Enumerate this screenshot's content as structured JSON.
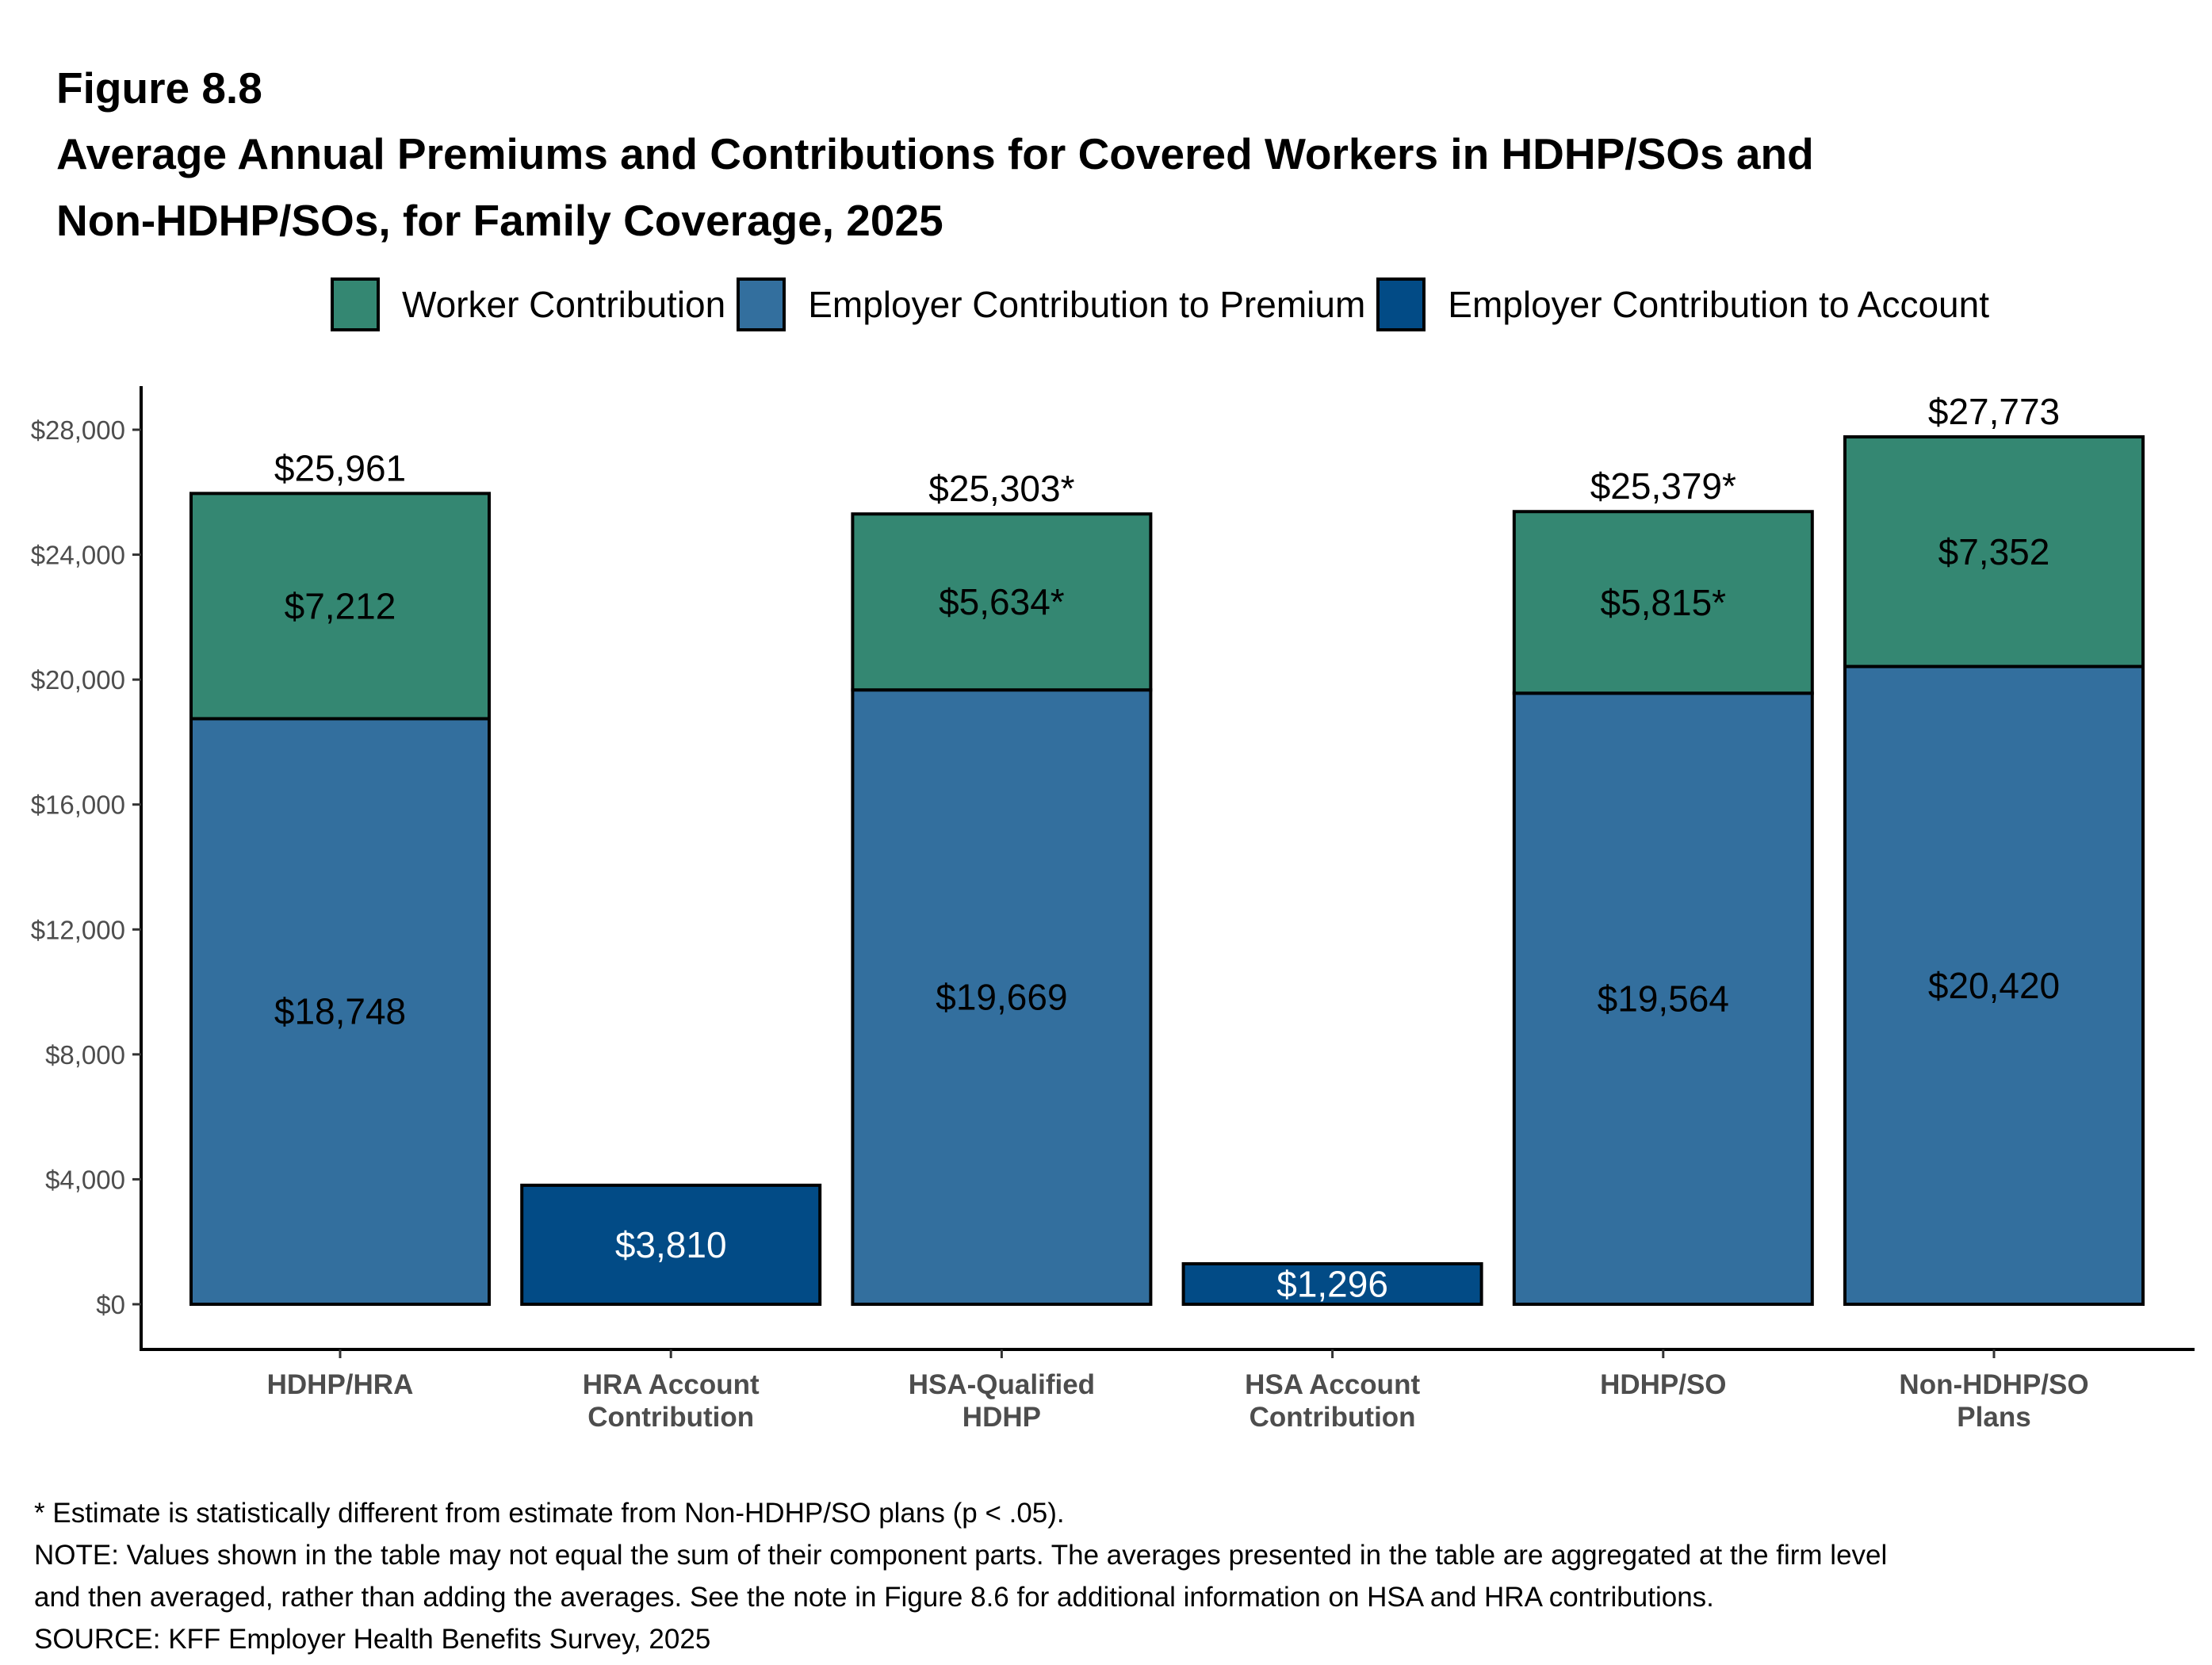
{
  "figure_number": "Figure 8.8",
  "title_line1": "Average Annual Premiums and Contributions for Covered Workers in HDHP/SOs and",
  "title_line2": "Non-HDHP/SOs, for Family Coverage, 2025",
  "legend": [
    {
      "label": "Worker Contribution",
      "color": "#348772"
    },
    {
      "label": "Employer Contribution to Premium",
      "color": "#336F9E"
    },
    {
      "label": "Employer Contribution to Account",
      "color": "#024B86"
    }
  ],
  "footnotes": {
    "asterisk": "* Estimate is statistically different from estimate from Non-HDHP/SO plans (p < .05).",
    "note_line1": "NOTE: Values shown in the table may not equal the sum of their component parts. The averages presented in the table are aggregated at the firm level",
    "note_line2": "and then averaged, rather than adding the averages. See the note in Figure 8.6 for additional information on HSA and HRA contributions.",
    "source": "SOURCE: KFF Employer Health Benefits Survey, 2025"
  },
  "chart_data": {
    "type": "bar",
    "stacked": true,
    "title": "Average Annual Premiums and Contributions for Covered Workers in HDHP/SOs and Non-HDHP/SOs, for Family Coverage, 2025",
    "xlabel": "",
    "ylabel": "",
    "ylim": [
      0,
      29000
    ],
    "yticks": [
      0,
      4000,
      8000,
      12000,
      16000,
      20000,
      24000,
      28000
    ],
    "ytick_labels": [
      "$0",
      "$4,000",
      "$8,000",
      "$12,000",
      "$16,000",
      "$20,000",
      "$24,000",
      "$28,000"
    ],
    "grid": false,
    "legend_position": "top",
    "categories": [
      [
        "HDHP/HRA"
      ],
      [
        "HRA Account",
        "Contribution"
      ],
      [
        "HSA-Qualified",
        "HDHP"
      ],
      [
        "HSA Account",
        "Contribution"
      ],
      [
        "HDHP/SO"
      ],
      [
        "Non-HDHP/SO",
        "Plans"
      ]
    ],
    "series": [
      {
        "name": "Employer Contribution to Premium",
        "color": "#336F9E",
        "label_color": "#000000",
        "values": [
          18748,
          null,
          19669,
          null,
          19564,
          20420
        ],
        "labels": [
          "$18,748",
          null,
          "$19,669",
          null,
          "$19,564",
          "$20,420"
        ]
      },
      {
        "name": "Employer Contribution to Account",
        "color": "#024B86",
        "label_color": "#FFFFFF",
        "values": [
          null,
          3810,
          null,
          1296,
          null,
          null
        ],
        "labels": [
          null,
          "$3,810",
          null,
          "$1,296",
          null,
          null
        ]
      },
      {
        "name": "Worker Contribution",
        "color": "#348772",
        "label_color": "#000000",
        "values": [
          7212,
          null,
          5634,
          null,
          5815,
          7352
        ],
        "labels": [
          "$7,212",
          null,
          "$5,634*",
          null,
          "$5,815*",
          "$7,352"
        ]
      }
    ],
    "totals": [
      25961,
      null,
      25303,
      null,
      25379,
      27773
    ],
    "total_labels": [
      "$25,961",
      null,
      "$25,303*",
      null,
      "$25,379*",
      "$27,773"
    ]
  }
}
